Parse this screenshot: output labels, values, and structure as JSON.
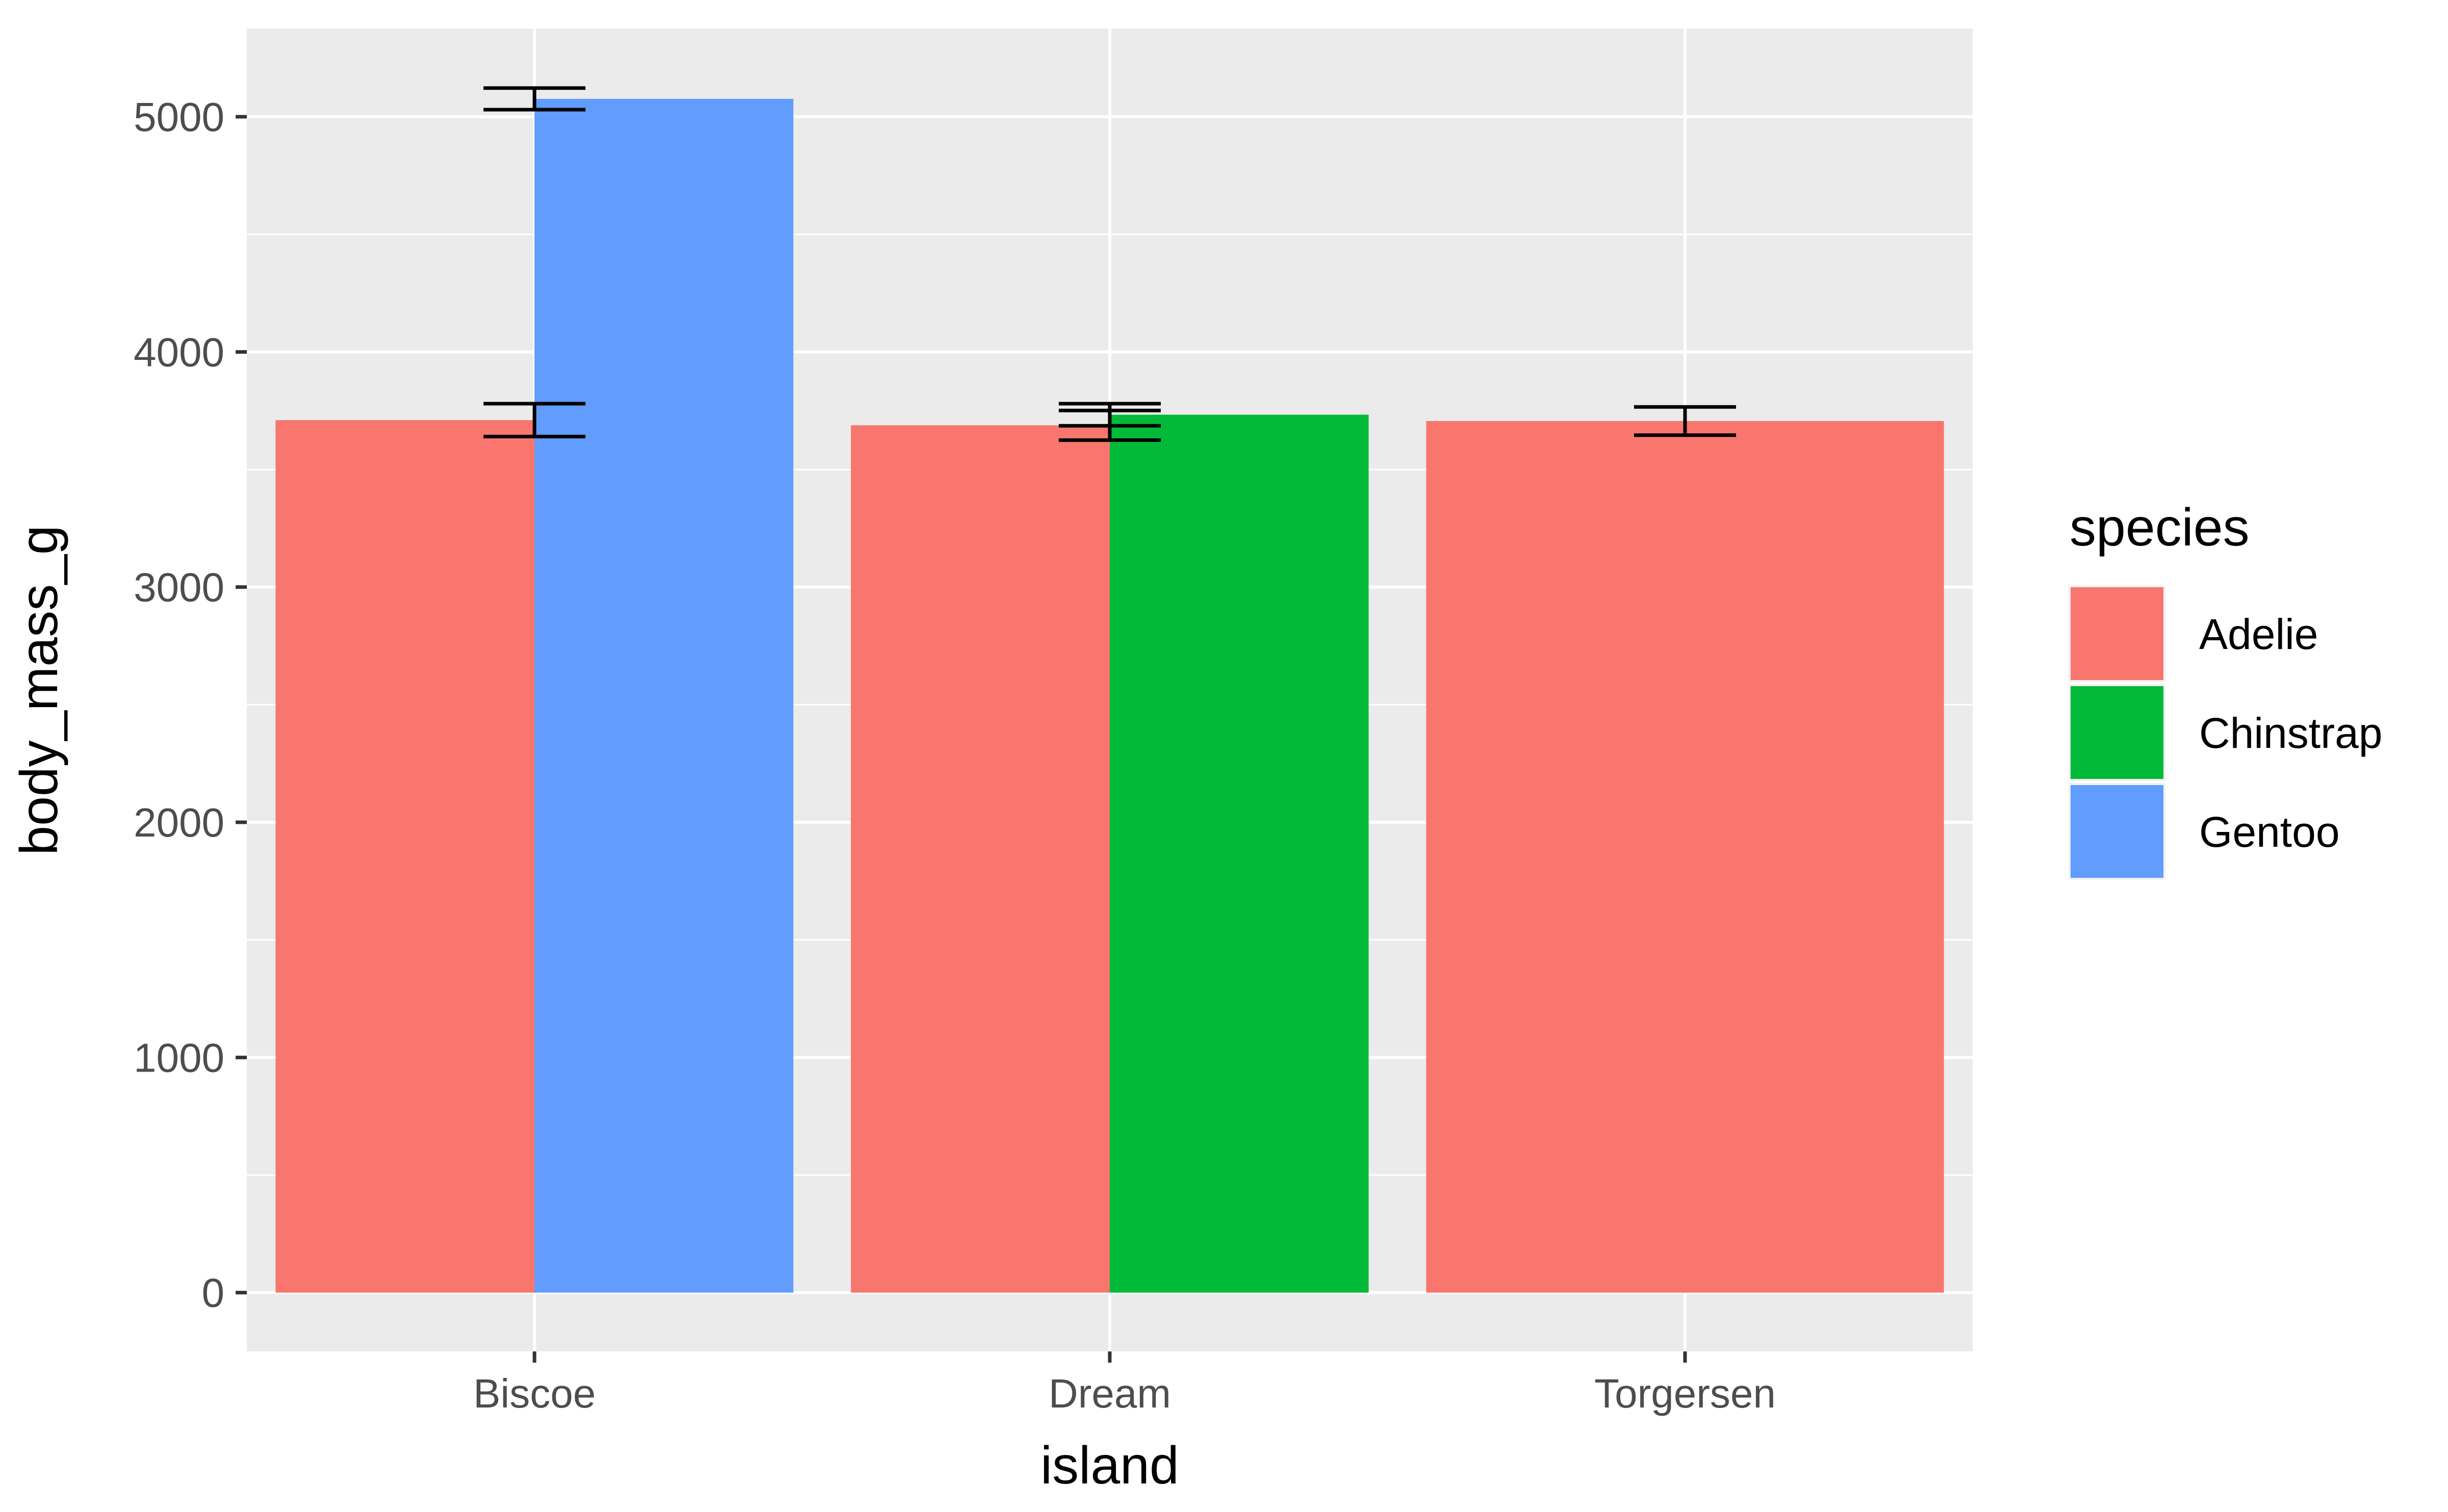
{
  "chart_data": {
    "type": "bar",
    "xlabel": "island",
    "ylabel": "body_mass_g",
    "categories": [
      "Biscoe",
      "Dream",
      "Torgersen"
    ],
    "ylim": [
      -250,
      5375
    ],
    "yticks": [
      0,
      1000,
      2000,
      3000,
      4000,
      5000
    ],
    "grid": true,
    "legend": {
      "title": "species",
      "placement": "right",
      "entries": [
        {
          "name": "Adelie",
          "color": "#F8766D"
        },
        {
          "name": "Chinstrap",
          "color": "#00BA38"
        },
        {
          "name": "Gentoo",
          "color": "#619CFF"
        }
      ]
    },
    "bars": [
      {
        "category": "Biscoe",
        "species": "Adelie",
        "value": 3710,
        "err_low": 3640,
        "err_high": 3780
      },
      {
        "category": "Biscoe",
        "species": "Gentoo",
        "value": 5076,
        "err_low": 5030,
        "err_high": 5122
      },
      {
        "category": "Dream",
        "species": "Adelie",
        "value": 3688,
        "err_low": 3625,
        "err_high": 3751
      },
      {
        "category": "Dream",
        "species": "Chinstrap",
        "value": 3733,
        "err_low": 3686,
        "err_high": 3780
      },
      {
        "category": "Torgersen",
        "species": "Adelie",
        "value": 3706,
        "err_low": 3646,
        "err_high": 3766
      }
    ]
  }
}
